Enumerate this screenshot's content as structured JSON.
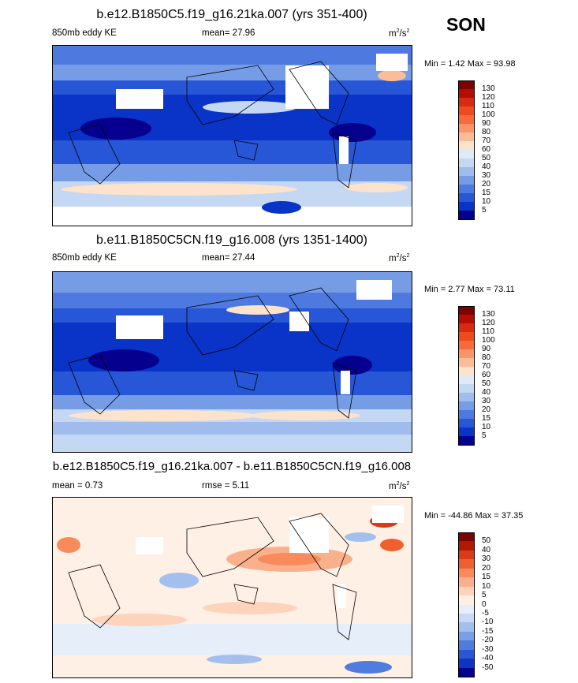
{
  "season": "SON",
  "panels": [
    {
      "title": "b.e12.B1850C5.f19_g16.21ka.007 (yrs 351-400)",
      "left_label": "850mb eddy KE",
      "center_label": "mean=  27.96",
      "units_base": "m",
      "units_exp1": "2",
      "units_mid": "/s",
      "units_exp2": "2",
      "minmax": "Min =   1.42 Max =  93.98",
      "colorbar": {
        "labels": [
          "130",
          "120",
          "110",
          "100",
          "90",
          "80",
          "70",
          "60",
          "50",
          "40",
          "30",
          "20",
          "15",
          "10",
          "5"
        ],
        "colors": [
          "#7f0000",
          "#b30d00",
          "#d92b0e",
          "#ef4a1e",
          "#f76b3a",
          "#fb9468",
          "#fcbc98",
          "#fde2cc",
          "#dfeaf8",
          "#c4d7f3",
          "#9fbced",
          "#779ce6",
          "#4e7ae0",
          "#2756d6",
          "#0a33c8",
          "#06008f"
        ]
      }
    },
    {
      "title": "b.e11.B1850C5CN.f19_g16.008 (yrs 1351-1400)",
      "left_label": "850mb eddy KE",
      "center_label": "mean=  27.44",
      "units_base": "m",
      "units_exp1": "2",
      "units_mid": "/s",
      "units_exp2": "2",
      "minmax": "Min =   2.77 Max =  73.11",
      "colorbar": {
        "labels": [
          "130",
          "120",
          "110",
          "100",
          "90",
          "80",
          "70",
          "60",
          "50",
          "40",
          "30",
          "20",
          "15",
          "10",
          "5"
        ],
        "colors": [
          "#7f0000",
          "#b30d00",
          "#d92b0e",
          "#ef4a1e",
          "#f76b3a",
          "#fb9468",
          "#fcbc98",
          "#fde2cc",
          "#dfeaf8",
          "#c4d7f3",
          "#9fbced",
          "#779ce6",
          "#4e7ae0",
          "#2756d6",
          "#0a33c8",
          "#06008f"
        ]
      }
    },
    {
      "title": "b.e12.B1850C5.f19_g16.21ka.007 - b.e11.B1850C5CN.f19_g16.008",
      "left_label": "mean =   0.73",
      "center_label": "rmse =   5.11",
      "units_base": "m",
      "units_exp1": "2",
      "units_mid": "/s",
      "units_exp2": "2",
      "minmax": "Min = -44.86 Max =  37.35",
      "colorbar": {
        "labels": [
          "50",
          "40",
          "30",
          "20",
          "15",
          "10",
          "5",
          "0",
          "-5",
          "-10",
          "-15",
          "-20",
          "-30",
          "-40",
          "-50"
        ],
        "colors": [
          "#7f0000",
          "#b31800",
          "#dc3a14",
          "#f0602e",
          "#f98a5c",
          "#fbb08c",
          "#fdd3bc",
          "#fff0e6",
          "#e6eefa",
          "#c8d9f4",
          "#a3bfee",
          "#7a9fe6",
          "#4f7cde",
          "#2a58d4",
          "#0e34c4",
          "#06008f"
        ]
      }
    }
  ]
}
